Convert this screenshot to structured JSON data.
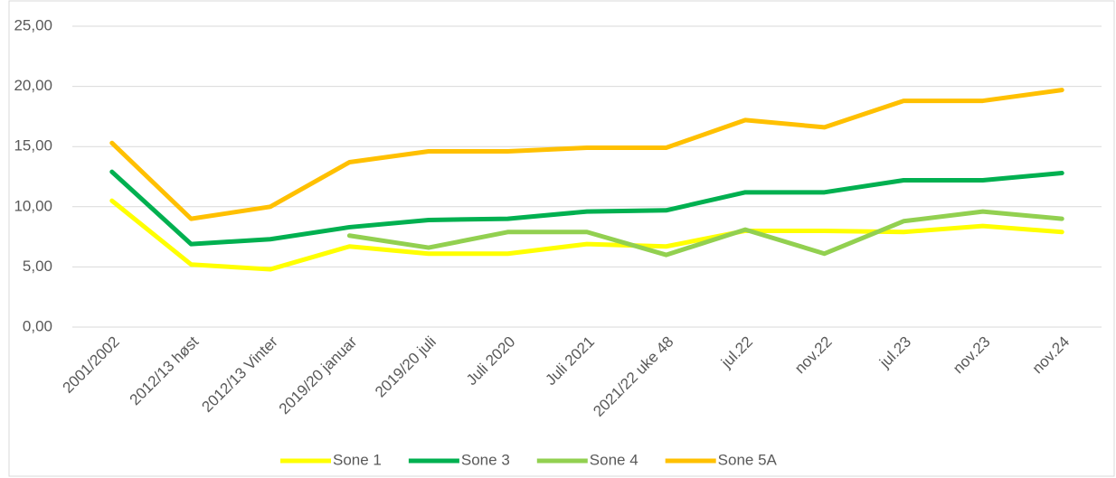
{
  "chart_data": {
    "type": "line",
    "categories": [
      "2001/2002",
      "2012/13 høst",
      "2012/13 Vinter",
      "2019/20 januar",
      "2019/20 juli",
      "Juli 2020",
      "Juli 2021",
      "2021/22 uke 48",
      "jul.22",
      "nov.22",
      "jul.23",
      "nov.23",
      "nov.24"
    ],
    "series": [
      {
        "name": "Sone 1",
        "color": "#ffff00",
        "values": [
          10.5,
          5.2,
          4.8,
          6.7,
          6.1,
          6.1,
          6.9,
          6.7,
          8.0,
          8.0,
          7.9,
          8.4,
          7.9
        ]
      },
      {
        "name": "Sone 3",
        "color": "#00b050",
        "values": [
          12.9,
          6.9,
          7.3,
          8.3,
          8.9,
          9.0,
          9.6,
          9.7,
          11.2,
          11.2,
          12.2,
          12.2,
          12.8
        ]
      },
      {
        "name": "Sone 4",
        "color": "#92d050",
        "values": [
          null,
          null,
          null,
          7.6,
          6.6,
          7.9,
          7.9,
          6.0,
          8.1,
          6.1,
          8.8,
          9.6,
          9.0
        ]
      },
      {
        "name": "Sone 5A",
        "color": "#ffc000",
        "values": [
          15.3,
          9.0,
          10.0,
          13.7,
          14.6,
          14.6,
          14.9,
          14.9,
          17.2,
          16.6,
          18.8,
          18.8,
          19.7
        ]
      }
    ],
    "ylim": [
      0,
      25
    ],
    "yticks": [
      {
        "value": 0,
        "label": "0,00"
      },
      {
        "value": 5,
        "label": "5,00"
      },
      {
        "value": 10,
        "label": "10,00"
      },
      {
        "value": 15,
        "label": "15,00"
      },
      {
        "value": 20,
        "label": "20,00"
      },
      {
        "value": 25,
        "label": "25,00"
      }
    ],
    "grid": true,
    "legend": "bottom"
  }
}
